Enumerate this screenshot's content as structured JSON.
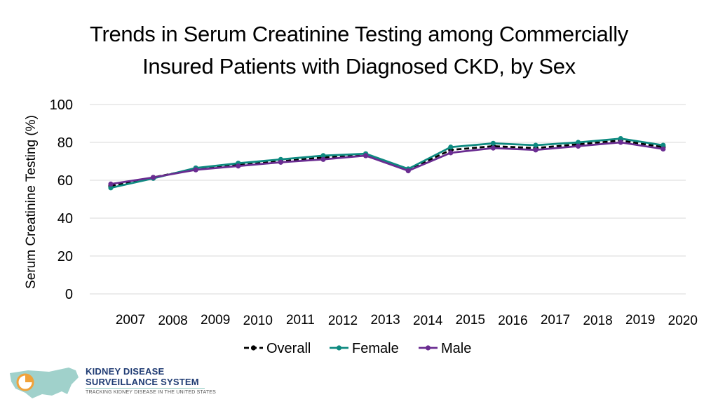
{
  "title_line1": "Trends in Serum Creatinine Testing among Commercially",
  "title_line2": "Insured Patients with Diagnosed CKD, by Sex",
  "logo": {
    "line1": "KIDNEY DISEASE",
    "line2": "SURVEILLANCE SYSTEM",
    "tagline": "TRACKING KIDNEY DISEASE IN THE UNITED STATES"
  },
  "colors": {
    "overall": "#000000",
    "female": "#0e8a80",
    "male": "#6a2c91",
    "grid": "#d9d9d9",
    "logo_navy": "#1f3b73",
    "logo_teal": "#8fc9c2",
    "logo_orange": "#f0a23a"
  },
  "chart_data": {
    "type": "line",
    "title": "Trends in Serum Creatinine Testing among Commercially Insured Patients with Diagnosed CKD, by Sex",
    "xlabel": "",
    "ylabel": "Serum Creatinine Testing (%)",
    "ylim": [
      0,
      100
    ],
    "yticks": [
      0,
      20,
      40,
      60,
      80,
      100
    ],
    "grid": true,
    "legend_position": "bottom",
    "categories": [
      "2007",
      "2008",
      "2009",
      "2010",
      "2011",
      "2012",
      "2013",
      "2014",
      "2015",
      "2016",
      "2017",
      "2018",
      "2019",
      "2020"
    ],
    "series": [
      {
        "name": "Overall",
        "key": "overall",
        "dashed": true,
        "values": [
          57,
          61.5,
          66,
          68,
          70,
          72,
          73,
          65.5,
          76,
          78,
          77,
          79,
          81,
          77.5
        ]
      },
      {
        "name": "Female",
        "key": "female",
        "dashed": false,
        "values": [
          56,
          61,
          66.5,
          69,
          71,
          73,
          74,
          66,
          77.5,
          79.5,
          78.5,
          80,
          82,
          78.5
        ]
      },
      {
        "name": "Male",
        "key": "male",
        "dashed": false,
        "values": [
          58,
          61.5,
          65.5,
          67.5,
          69.5,
          71,
          73,
          65,
          74.5,
          77,
          76,
          78,
          80,
          76.5
        ]
      }
    ]
  }
}
